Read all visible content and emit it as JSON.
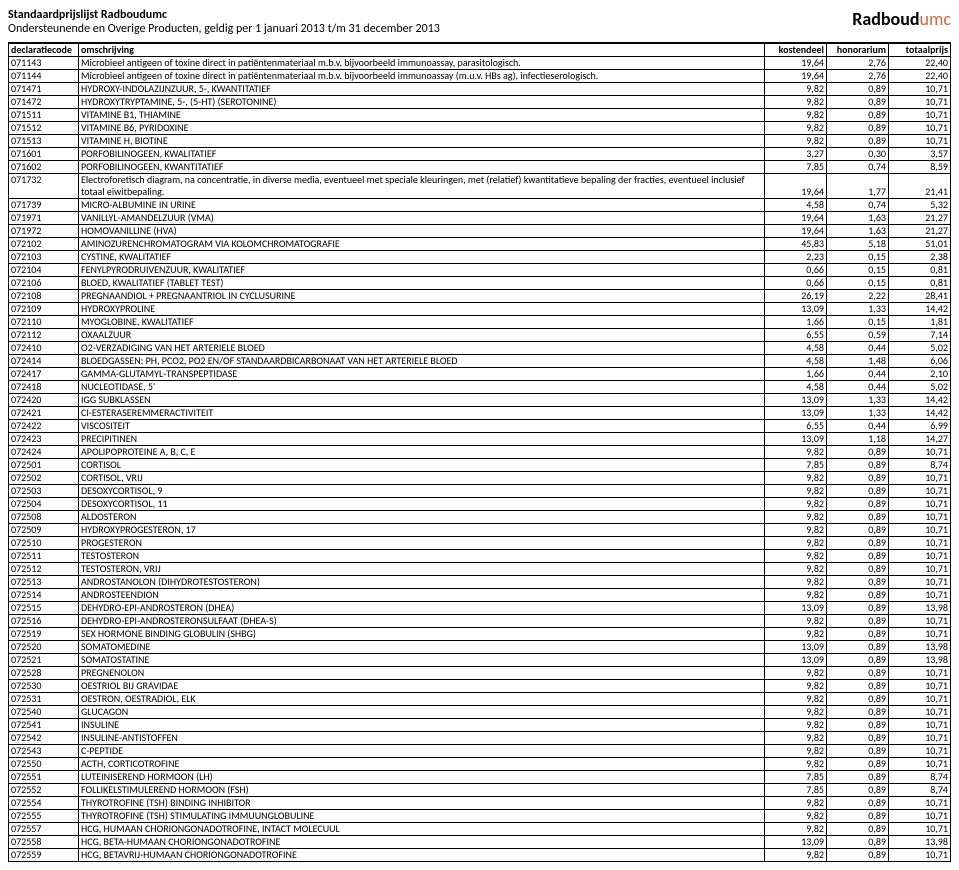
{
  "header": {
    "title1": "Standaardprijslijst Radboudumc",
    "title2": "Ondersteunende en Overige Producten, geldig per 1 januari 2013 t/m 31 december 2013",
    "logo_main": "Radboud",
    "logo_suffix": "umc"
  },
  "columns": {
    "c0": "declaratiecode",
    "c1": "omschrijving",
    "c2": "kostendeel",
    "c3": "honorarium",
    "c4": "totaalprijs"
  },
  "rows": [
    {
      "code": "071143",
      "desc": "Microbieel antigeen of toxine direct in patiëntenmateriaal m.b.v. bijvoorbeeld immunoassay, parasitologisch.",
      "v1": "19,64",
      "v2": "2,76",
      "v3": "22,40"
    },
    {
      "code": "071144",
      "desc": "Microbieel antigeen of toxine direct in patiëntenmateriaal m.b.v. bijvoorbeeld immunoassay (m.u.v. HBs ag), infectieserologisch.",
      "v1": "19,64",
      "v2": "2,76",
      "v3": "22,40"
    },
    {
      "code": "071471",
      "desc": "HYDROXY-INDOLAZIJNZUUR, 5-, KWANTITATIEF",
      "v1": "9,82",
      "v2": "0,89",
      "v3": "10,71"
    },
    {
      "code": "071472",
      "desc": "HYDROXYTRYPTAMINE, 5-, (5-HT) (SEROTONINE)",
      "v1": "9,82",
      "v2": "0,89",
      "v3": "10,71"
    },
    {
      "code": "071511",
      "desc": "VITAMINE B1, THIAMINE",
      "v1": "9,82",
      "v2": "0,89",
      "v3": "10,71"
    },
    {
      "code": "071512",
      "desc": "VITAMINE B6, PYRIDOXINE",
      "v1": "9,82",
      "v2": "0,89",
      "v3": "10,71"
    },
    {
      "code": "071513",
      "desc": "VITAMINE H, BIOTINE",
      "v1": "9,82",
      "v2": "0,89",
      "v3": "10,71"
    },
    {
      "code": "071601",
      "desc": "PORFOBILINOGEEN, KWALITATIEF",
      "v1": "3,27",
      "v2": "0,30",
      "v3": "3,57"
    },
    {
      "code": "071602",
      "desc": "PORFOBILINOGEEN, KWANTITATIEF",
      "v1": "7,85",
      "v2": "0,74",
      "v3": "8,59"
    },
    {
      "code": "071732",
      "desc": "Electroforetisch diagram, na concentratie, in diverse media, eventueel met speciale kleuringen, met (relatief) kwantitatieve bepaling der fracties, eventueel inclusief totaal eiwitbepaling.",
      "v1": "19,64",
      "v2": "1,77",
      "v3": "21,41",
      "wrap": true
    },
    {
      "code": "071739",
      "desc": "MICRO-ALBUMINE IN URINE",
      "v1": "4,58",
      "v2": "0,74",
      "v3": "5,32"
    },
    {
      "code": "071971",
      "desc": "VANILLYL-AMANDELZUUR (VMA)",
      "v1": "19,64",
      "v2": "1,63",
      "v3": "21,27"
    },
    {
      "code": "071972",
      "desc": "HOMOVANILLINE (HVA)",
      "v1": "19,64",
      "v2": "1,63",
      "v3": "21,27"
    },
    {
      "code": "072102",
      "desc": "AMINOZURENCHROMATOGRAM VIA KOLOMCHROMATOGRAFIE",
      "v1": "45,83",
      "v2": "5,18",
      "v3": "51,01"
    },
    {
      "code": "072103",
      "desc": "CYSTINE, KWALITATIEF",
      "v1": "2,23",
      "v2": "0,15",
      "v3": "2,38"
    },
    {
      "code": "072104",
      "desc": "FENYLPYRODRUIVENZUUR, KWALITATIEF",
      "v1": "0,66",
      "v2": "0,15",
      "v3": "0,81"
    },
    {
      "code": "072106",
      "desc": "BLOED, KWALITATIEF (TABLET TEST)",
      "v1": "0,66",
      "v2": "0,15",
      "v3": "0,81"
    },
    {
      "code": "072108",
      "desc": "PREGNAANDIOL + PREGNAANTRIOL IN CYCLUSURINE",
      "v1": "26,19",
      "v2": "2,22",
      "v3": "28,41"
    },
    {
      "code": "072109",
      "desc": "HYDROXYPROLINE",
      "v1": "13,09",
      "v2": "1,33",
      "v3": "14,42"
    },
    {
      "code": "072110",
      "desc": "MYOGLOBINE, KWALITATIEF",
      "v1": "1,66",
      "v2": "0,15",
      "v3": "1,81"
    },
    {
      "code": "072112",
      "desc": "OXAALZUUR",
      "v1": "6,55",
      "v2": "0,59",
      "v3": "7,14"
    },
    {
      "code": "072410",
      "desc": "O2-VERZADIGING VAN HET ARTERIELE BLOED",
      "v1": "4,58",
      "v2": "0,44",
      "v3": "5,02"
    },
    {
      "code": "072414",
      "desc": "BLOEDGASSEN: PH, PCO2, PO2 EN/OF STANDAARDBICARBONAAT VAN HET ARTERIELE BLOED",
      "v1": "4,58",
      "v2": "1,48",
      "v3": "6,06"
    },
    {
      "code": "072417",
      "desc": "GAMMA-GLUTAMYL-TRANSPEPTIDASE",
      "v1": "1,66",
      "v2": "0,44",
      "v3": "2,10"
    },
    {
      "code": "072418",
      "desc": "NUCLEOTIDASE, 5'",
      "v1": "4,58",
      "v2": "0,44",
      "v3": "5,02"
    },
    {
      "code": "072420",
      "desc": "IGG SUBKLASSEN",
      "v1": "13,09",
      "v2": "1,33",
      "v3": "14,42"
    },
    {
      "code": "072421",
      "desc": "CI-ESTERASEREMMERACTIVITEIT",
      "v1": "13,09",
      "v2": "1,33",
      "v3": "14,42"
    },
    {
      "code": "072422",
      "desc": "VISCOSITEIT",
      "v1": "6,55",
      "v2": "0,44",
      "v3": "6,99"
    },
    {
      "code": "072423",
      "desc": "PRECIPITINEN",
      "v1": "13,09",
      "v2": "1,18",
      "v3": "14,27"
    },
    {
      "code": "072424",
      "desc": "APOLIPOPROTEINE A, B, C, E",
      "v1": "9,82",
      "v2": "0,89",
      "v3": "10,71"
    },
    {
      "code": "072501",
      "desc": "CORTISOL",
      "v1": "7,85",
      "v2": "0,89",
      "v3": "8,74"
    },
    {
      "code": "072502",
      "desc": "CORTISOL, VRIJ",
      "v1": "9,82",
      "v2": "0,89",
      "v3": "10,71"
    },
    {
      "code": "072503",
      "desc": "DESOXYCORTISOL, 9",
      "v1": "9,82",
      "v2": "0,89",
      "v3": "10,71"
    },
    {
      "code": "072504",
      "desc": "DESOXYCORTISOL, 11",
      "v1": "9,82",
      "v2": "0,89",
      "v3": "10,71"
    },
    {
      "code": "072508",
      "desc": "ALDOSTERON",
      "v1": "9,82",
      "v2": "0,89",
      "v3": "10,71"
    },
    {
      "code": "072509",
      "desc": "HYDROXYPROGESTERON, 17",
      "v1": "9,82",
      "v2": "0,89",
      "v3": "10,71"
    },
    {
      "code": "072510",
      "desc": "PROGESTERON",
      "v1": "9,82",
      "v2": "0,89",
      "v3": "10,71"
    },
    {
      "code": "072511",
      "desc": "TESTOSTERON",
      "v1": "9,82",
      "v2": "0,89",
      "v3": "10,71"
    },
    {
      "code": "072512",
      "desc": "TESTOSTERON, VRIJ",
      "v1": "9,82",
      "v2": "0,89",
      "v3": "10,71"
    },
    {
      "code": "072513",
      "desc": "ANDROSTANOLON (DIHYDROTESTOSTERON)",
      "v1": "9,82",
      "v2": "0,89",
      "v3": "10,71"
    },
    {
      "code": "072514",
      "desc": "ANDROSTEENDION",
      "v1": "9,82",
      "v2": "0,89",
      "v3": "10,71"
    },
    {
      "code": "072515",
      "desc": "DEHYDRO-EPI-ANDROSTERON (DHEA)",
      "v1": "13,09",
      "v2": "0,89",
      "v3": "13,98"
    },
    {
      "code": "072516",
      "desc": "DEHYDRO-EPI-ANDROSTERONSULFAAT (DHEA-S)",
      "v1": "9,82",
      "v2": "0,89",
      "v3": "10,71"
    },
    {
      "code": "072519",
      "desc": "SEX HORMONE BINDING GLOBULIN (SHBG)",
      "v1": "9,82",
      "v2": "0,89",
      "v3": "10,71"
    },
    {
      "code": "072520",
      "desc": "SOMATOMEDINE",
      "v1": "13,09",
      "v2": "0,89",
      "v3": "13,98"
    },
    {
      "code": "072521",
      "desc": "SOMATOSTATINE",
      "v1": "13,09",
      "v2": "0,89",
      "v3": "13,98"
    },
    {
      "code": "072528",
      "desc": "PREGNENOLON",
      "v1": "9,82",
      "v2": "0,89",
      "v3": "10,71"
    },
    {
      "code": "072530",
      "desc": "OESTRIOL BIJ GRAVIDAE",
      "v1": "9,82",
      "v2": "0,89",
      "v3": "10,71"
    },
    {
      "code": "072531",
      "desc": "OESTRON, OESTRADIOL, ELK",
      "v1": "9,82",
      "v2": "0,89",
      "v3": "10,71"
    },
    {
      "code": "072540",
      "desc": "GLUCAGON",
      "v1": "9,82",
      "v2": "0,89",
      "v3": "10,71"
    },
    {
      "code": "072541",
      "desc": "INSULINE",
      "v1": "9,82",
      "v2": "0,89",
      "v3": "10,71"
    },
    {
      "code": "072542",
      "desc": "INSULINE-ANTISTOFFEN",
      "v1": "9,82",
      "v2": "0,89",
      "v3": "10,71"
    },
    {
      "code": "072543",
      "desc": "C-PEPTIDE",
      "v1": "9,82",
      "v2": "0,89",
      "v3": "10,71"
    },
    {
      "code": "072550",
      "desc": "ACTH, CORTICOTROFINE",
      "v1": "9,82",
      "v2": "0,89",
      "v3": "10,71"
    },
    {
      "code": "072551",
      "desc": "LUTEINISEREND HORMOON (LH)",
      "v1": "7,85",
      "v2": "0,89",
      "v3": "8,74"
    },
    {
      "code": "072552",
      "desc": "FOLLIKELSTIMULEREND HORMOON (FSH)",
      "v1": "7,85",
      "v2": "0,89",
      "v3": "8,74"
    },
    {
      "code": "072554",
      "desc": "THYROTROFINE (TSH) BINDING INHIBITOR",
      "v1": "9,82",
      "v2": "0,89",
      "v3": "10,71"
    },
    {
      "code": "072555",
      "desc": "THYROTROFINE (TSH) STIMULATING IMMUUNGLOBULINE",
      "v1": "9,82",
      "v2": "0,89",
      "v3": "10,71"
    },
    {
      "code": "072557",
      "desc": "HCG, HUMAAN CHORIONGONADOTROFINE, INTACT MOLECUUL",
      "v1": "9,82",
      "v2": "0,89",
      "v3": "10,71"
    },
    {
      "code": "072558",
      "desc": "HCG, BETA-HUMAAN CHORIONGONADOTROFINE",
      "v1": "13,09",
      "v2": "0,89",
      "v3": "13,98"
    },
    {
      "code": "072559",
      "desc": "HCG, BETAVRIJ-HUMAAN CHORIONGONADOTROFINE",
      "v1": "9,82",
      "v2": "0,89",
      "v3": "10,71"
    }
  ]
}
